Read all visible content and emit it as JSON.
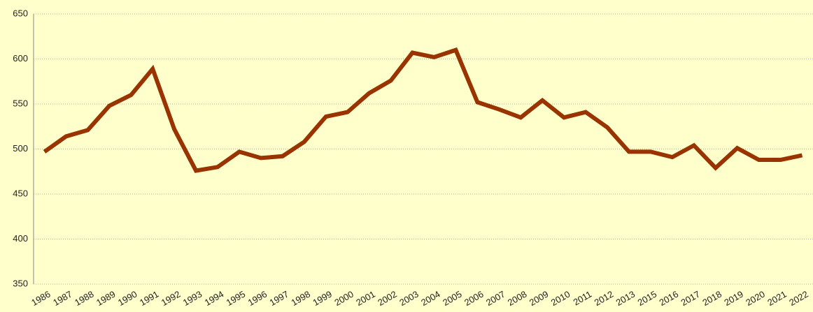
{
  "chart_data": {
    "type": "line",
    "categories": [
      "1986",
      "1987",
      "1988",
      "1989",
      "1990",
      "1991",
      "1992",
      "1993",
      "1994",
      "1995",
      "1996",
      "1997",
      "1998",
      "1999",
      "2000",
      "2001",
      "2002",
      "2003",
      "2004",
      "2005",
      "2006",
      "2007",
      "2008",
      "2009",
      "2010",
      "2011",
      "2012",
      "2013",
      "2015",
      "2016",
      "2017",
      "2018",
      "2019",
      "2020",
      "2021",
      "2022"
    ],
    "values": [
      497,
      514,
      521,
      548,
      560,
      589,
      522,
      476,
      480,
      497,
      490,
      492,
      508,
      536,
      541,
      562,
      576,
      607,
      602,
      610,
      552,
      544,
      535,
      554,
      535,
      541,
      524,
      497,
      497,
      491,
      504,
      479,
      501,
      488,
      488,
      493
    ],
    "color": "#993300",
    "ylim": [
      350,
      650
    ],
    "yticks": [
      350,
      400,
      450,
      500,
      550,
      600,
      650
    ],
    "grid": true
  }
}
